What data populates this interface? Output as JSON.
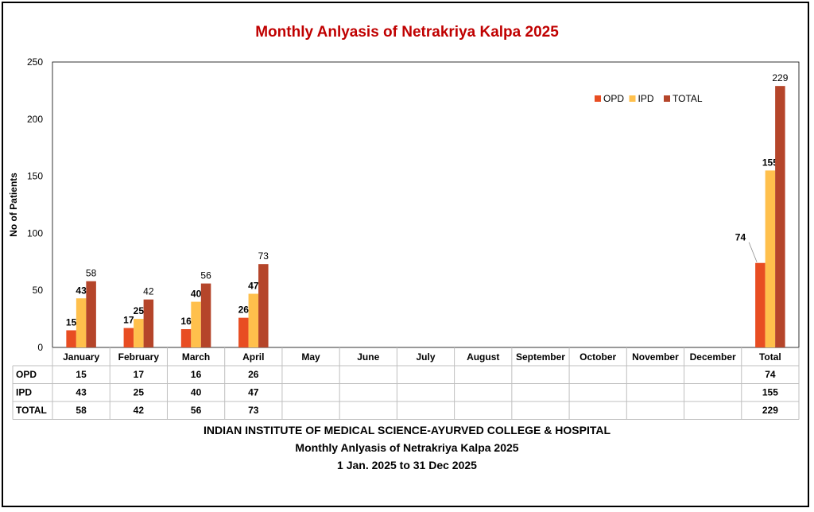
{
  "chart_data": {
    "type": "bar",
    "title": "Monthly Anlyasis of Netrakriya Kalpa  2025",
    "ylabel": "No of Patients",
    "ylim": [
      0,
      250
    ],
    "yticks": [
      0,
      50,
      100,
      150,
      200,
      250
    ],
    "categories": [
      "January",
      "February",
      "March",
      "April",
      "May",
      "June",
      "July",
      "August",
      "September",
      "October",
      "November",
      "December",
      "Total"
    ],
    "series": [
      {
        "name": "OPD",
        "color": "#e84d22",
        "values": [
          15,
          17,
          16,
          26,
          null,
          null,
          null,
          null,
          null,
          null,
          null,
          null,
          74
        ]
      },
      {
        "name": "IPD",
        "color": "#ffc04c",
        "values": [
          43,
          25,
          40,
          47,
          null,
          null,
          null,
          null,
          null,
          null,
          null,
          null,
          155
        ]
      },
      {
        "name": "TOTAL",
        "color": "#b5452a",
        "values": [
          58,
          42,
          56,
          73,
          null,
          null,
          null,
          null,
          null,
          null,
          null,
          null,
          229
        ]
      }
    ],
    "legend_position": "top-right",
    "grid": false,
    "data_table": true
  },
  "footer": {
    "line1": "INDIAN INSTITUTE OF MEDICAL SCIENCE-AYURVED COLLEGE & HOSPITAL",
    "line2": "Monthly Anlyasis of Netrakriya Kalpa  2025",
    "line3": "1 Jan. 2025 to 31 Dec 2025"
  }
}
